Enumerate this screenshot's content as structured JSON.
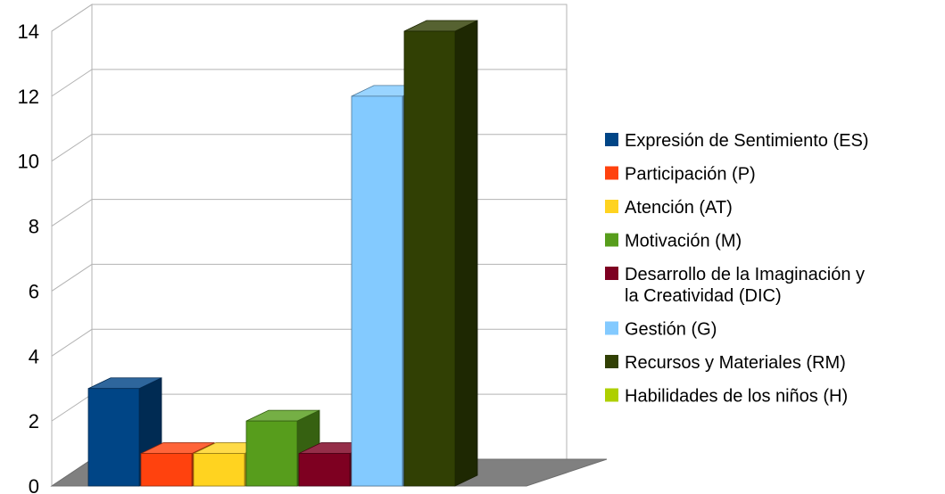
{
  "chart_data": {
    "type": "bar",
    "title": "",
    "xlabel": "",
    "ylabel": "",
    "ylim": [
      0,
      14
    ],
    "yticks": [
      0,
      2,
      4,
      6,
      8,
      10,
      12,
      14
    ],
    "yticks_text": [
      "0",
      "2",
      "4",
      "6",
      "8",
      "10",
      "12",
      "14"
    ],
    "grid": true,
    "three_d": true,
    "legend_position": "right",
    "series": [
      {
        "name": "Expresión de Sentimiento (ES)",
        "legend_lines": [
          "Expresión de Sentimiento (ES)"
        ],
        "value": 3,
        "color": "#004586"
      },
      {
        "name": "Participación (P)",
        "legend_lines": [
          "Participación (P)"
        ],
        "value": 1,
        "color": "#FF420E"
      },
      {
        "name": "Atención (AT)",
        "legend_lines": [
          "Atención (AT)"
        ],
        "value": 1,
        "color": "#FFD320"
      },
      {
        "name": "Motivación (M)",
        "legend_lines": [
          "Motivación (M)"
        ],
        "value": 2,
        "color": "#579D1C"
      },
      {
        "name": "Desarrollo de la Imaginación y la Creatividad (DIC)",
        "legend_lines": [
          "Desarrollo de la Imaginación y",
          "la Creatividad (DIC)"
        ],
        "value": 1,
        "color": "#7E0021"
      },
      {
        "name": "Gestión (G)",
        "legend_lines": [
          "Gestión (G)"
        ],
        "value": 12,
        "color": "#83CAFF"
      },
      {
        "name": "Recursos y Materiales (RM)",
        "legend_lines": [
          "Recursos y Materiales (RM)"
        ],
        "value": 14,
        "color": "#314004"
      },
      {
        "name": "Habilidades de los niños (H)",
        "legend_lines": [
          "Habilidades de los niños (H)"
        ],
        "value": 0,
        "color": "#AECF00"
      }
    ]
  }
}
